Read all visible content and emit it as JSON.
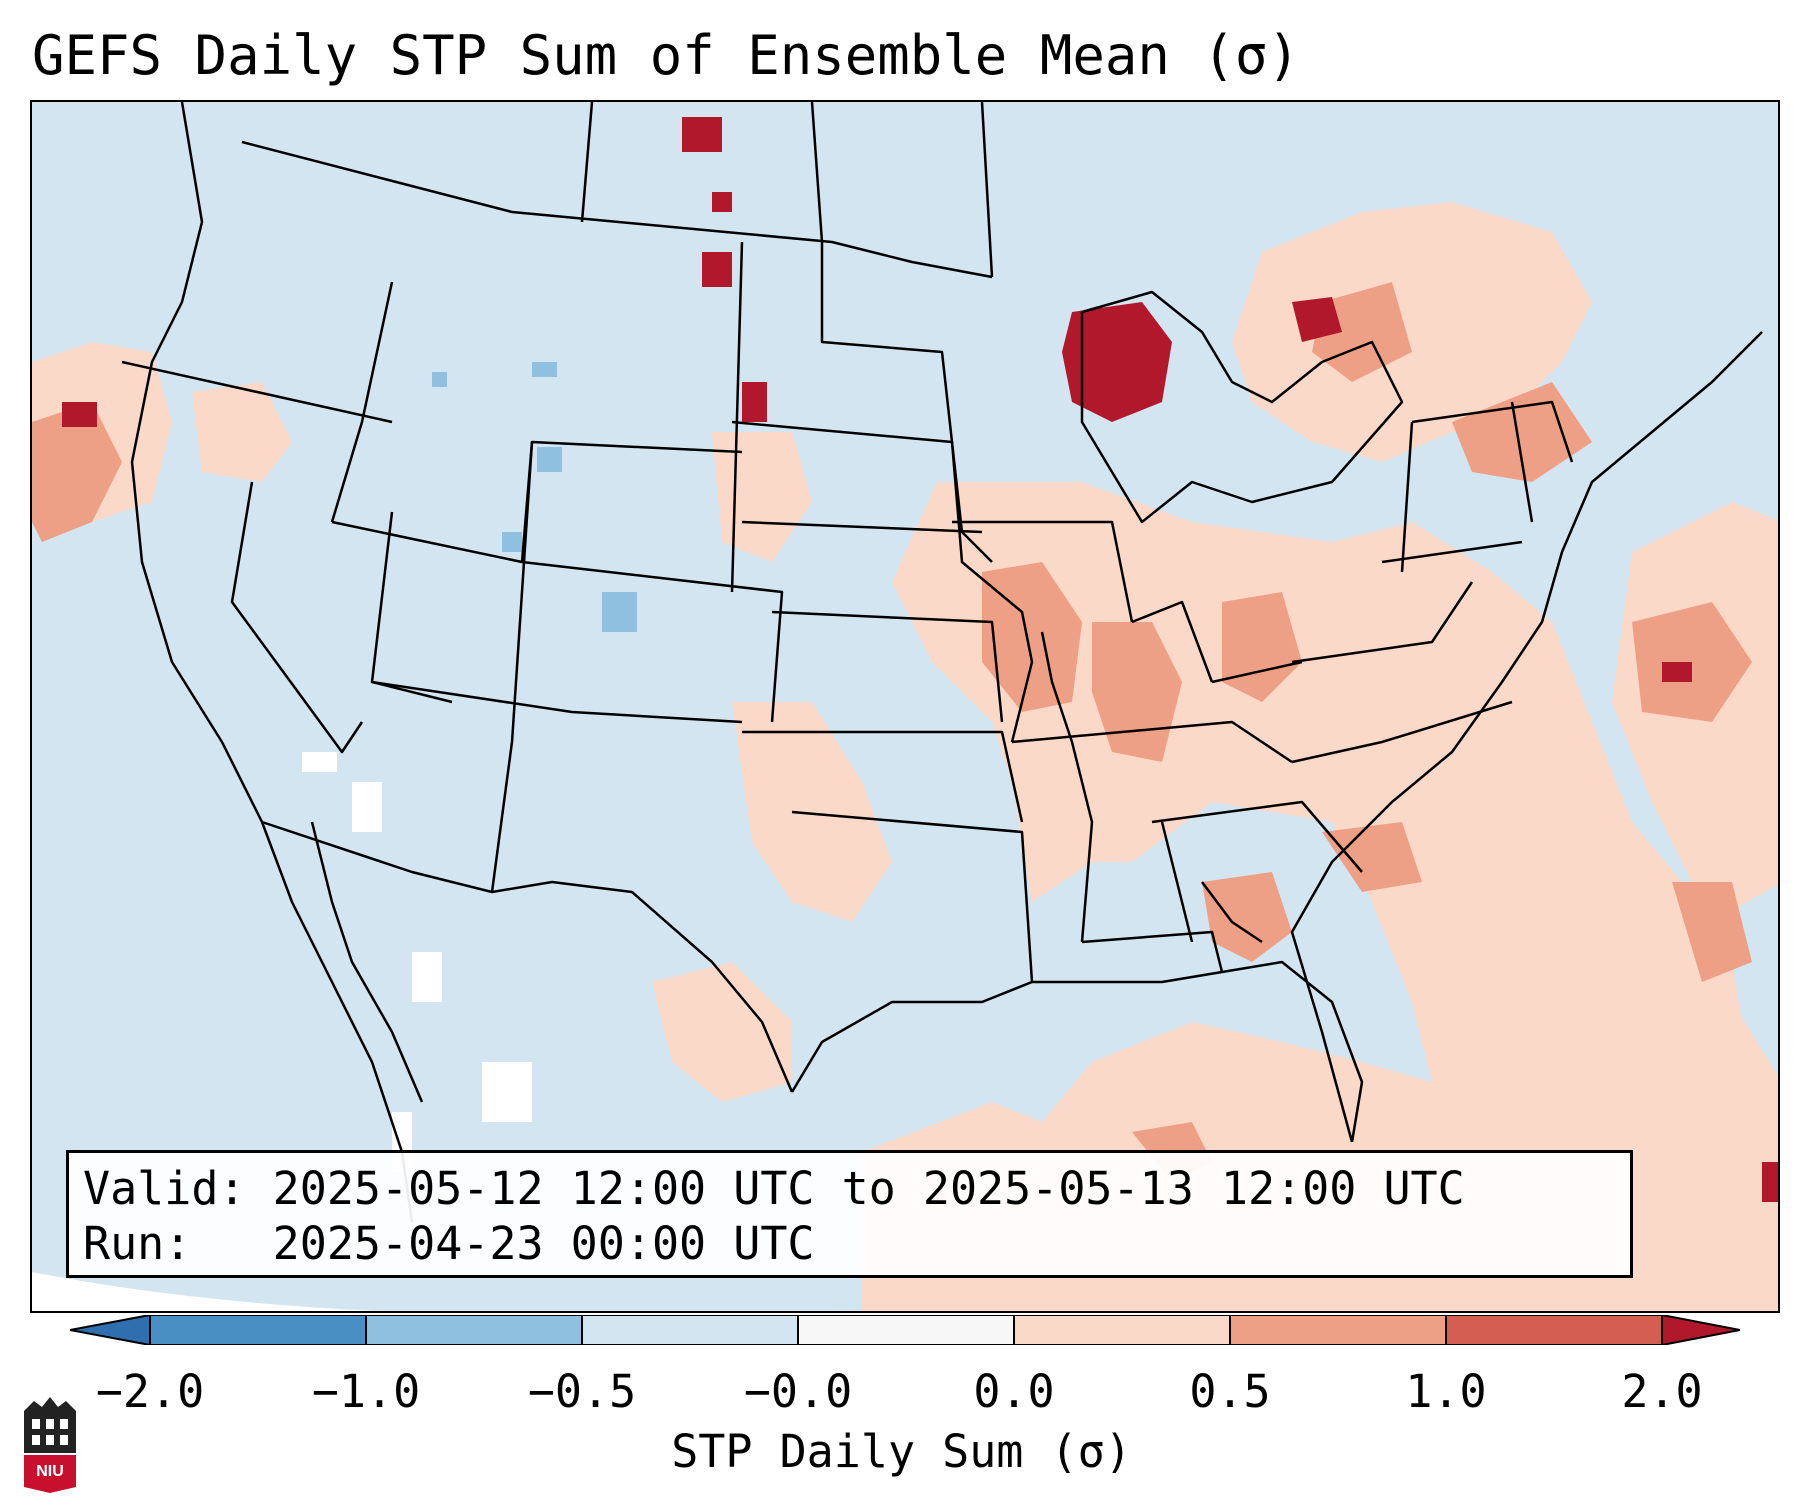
{
  "title": "GEFS Daily STP Sum of Ensemble Mean (σ)",
  "info": {
    "valid_label": "Valid:",
    "valid_value": "2025-05-12 12:00 UTC to 2025-05-13 12:00 UTC",
    "run_label": "Run:",
    "run_value": "2025-04-23 00:00 UTC"
  },
  "colorbar": {
    "label": "STP Daily Sum (σ)",
    "ticks": [
      "−2.0",
      "−1.0",
      "−0.5",
      "−0.0",
      "0.0",
      "0.5",
      "1.0",
      "2.0"
    ],
    "bins": [
      {
        "range": "-2.0 to -1.0",
        "color": "#4a8fc4"
      },
      {
        "range": "-1.0 to -0.5",
        "color": "#8fc0e0"
      },
      {
        "range": "-0.5 to -0.0",
        "color": "#d2e5f0"
      },
      {
        "range": "-0.0 to 0.0",
        "color": "#f7f7f7"
      },
      {
        "range": "0.0 to 0.5",
        "color": "#fbd9c8"
      },
      {
        "range": "0.5 to 1.0",
        "color": "#eea087"
      },
      {
        "range": "1.0 to 2.0",
        "color": "#d45e52"
      }
    ],
    "under_color": "#2f6fb0",
    "over_color": "#b2182b"
  },
  "map_colors": {
    "background": "#d2e5f0",
    "light_red": "#fbd9c8",
    "medium_red": "#eea087",
    "dark_red": "#b2182b",
    "light_blue": "#8fc0e0",
    "white": "#ffffff",
    "boundary": "#000000"
  },
  "logo": {
    "text": "NIU",
    "icon": "university-building-icon"
  }
}
